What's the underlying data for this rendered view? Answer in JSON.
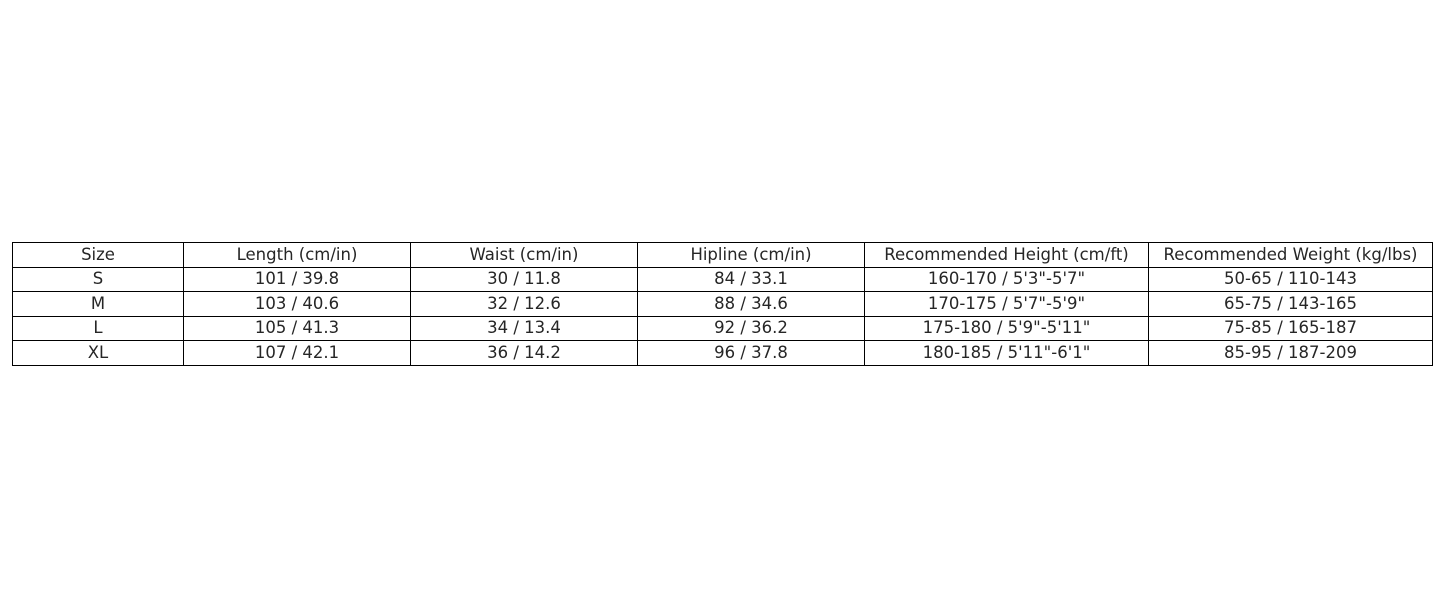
{
  "chart_data": {
    "type": "table",
    "columns": [
      "Size",
      "Length (cm/in)",
      "Waist (cm/in)",
      "Hipline (cm/in)",
      "Recommended Height (cm/ft)",
      "Recommended Weight (kg/lbs)"
    ],
    "rows": [
      [
        "S",
        "101 / 39.8",
        "30 / 11.8",
        "84 / 33.1",
        "160-170 / 5'3\"-5'7\"",
        "50-65 / 110-143"
      ],
      [
        "M",
        "103 / 40.6",
        "32 / 12.6",
        "88 / 34.6",
        "170-175 / 5'7\"-5'9\"",
        "65-75 / 143-165"
      ],
      [
        "L",
        "105 / 41.3",
        "34 / 13.4",
        "92 / 36.2",
        "175-180 / 5'9\"-5'11\"",
        "75-85 / 165-187"
      ],
      [
        "XL",
        "107 / 42.1",
        "36 / 14.2",
        "96 / 37.8",
        "180-185 / 5'11\"-6'1\"",
        "85-95 / 187-209"
      ]
    ]
  }
}
